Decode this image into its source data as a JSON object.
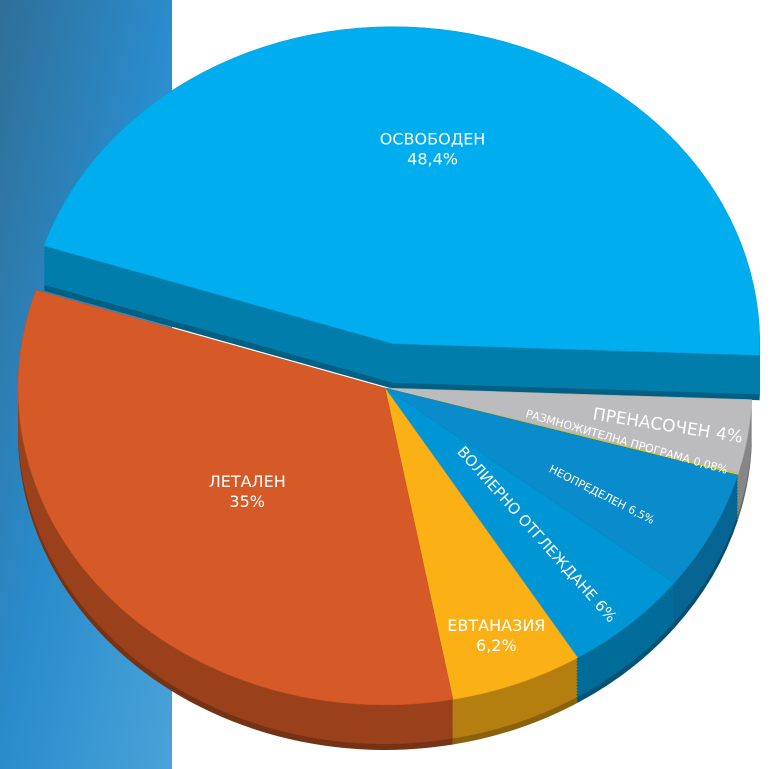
{
  "chart_data": {
    "type": "pie",
    "categories": [
      "ОСВОБОДЕН",
      "ПРЕНАСОЧЕН",
      "РАЗМНОЖИТЕЛНА ПРОГРАМА",
      "НЕОПРЕДЕЛЕН",
      "ВОЛИЕРНО ОТГЛЕЖДАНЕ",
      "ЕВТАНАЗИЯ",
      "ЛЕТАЛЕН"
    ],
    "values": [
      48.4,
      4,
      0.08,
      6.5,
      6,
      6.2,
      35
    ],
    "value_labels": [
      "48,4%",
      "4%",
      "0,08%",
      "6,5%",
      "6%",
      "6,2%",
      "35%"
    ],
    "colors": [
      "#00adee",
      "#bcbcbe",
      "#f2d400",
      "#0a8ccc",
      "#0096d6",
      "#fbb116",
      "#d65a27"
    ]
  }
}
